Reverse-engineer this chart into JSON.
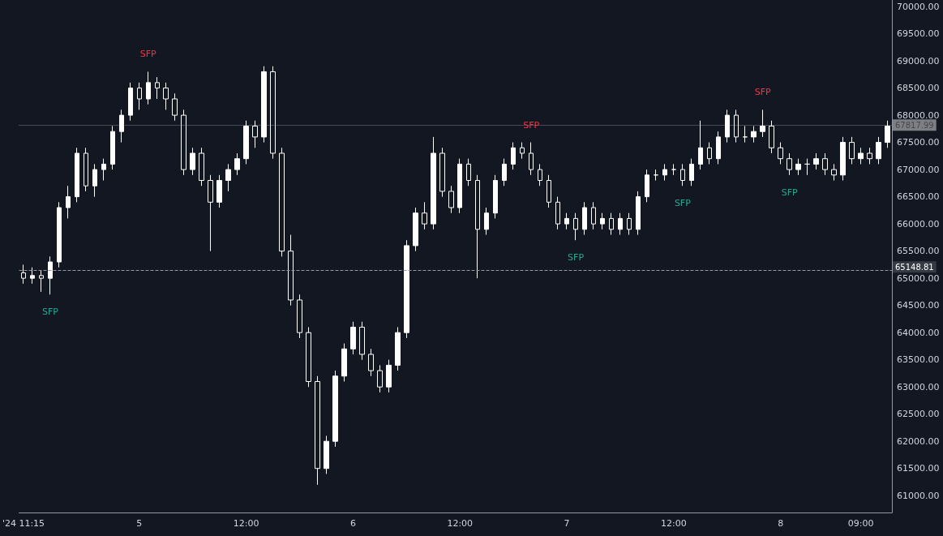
{
  "chart_data": {
    "type": "candlestick",
    "color": "#ffffff",
    "categories": [
      "'24 11:15",
      null,
      null,
      null,
      null,
      null,
      null,
      null,
      null,
      null,
      null,
      null,
      null,
      "5",
      null,
      null,
      null,
      null,
      null,
      null,
      null,
      null,
      null,
      null,
      null,
      "12:00",
      null,
      null,
      null,
      null,
      null,
      null,
      null,
      null,
      null,
      null,
      null,
      "6",
      null,
      null,
      null,
      null,
      null,
      null,
      null,
      null,
      null,
      null,
      null,
      "12:00",
      null,
      null,
      null,
      null,
      null,
      null,
      null,
      null,
      null,
      null,
      null,
      "7",
      null,
      null,
      null,
      null,
      null,
      null,
      null,
      null,
      null,
      null,
      null,
      "12:00",
      null,
      null,
      null,
      null,
      null,
      null,
      null,
      null,
      null,
      null,
      null,
      "8",
      null,
      null,
      null,
      null,
      null,
      null,
      null,
      null,
      "09:00",
      null,
      null,
      null
    ],
    "ohlc": [
      [
        65100,
        65250,
        64900,
        65000
      ],
      [
        65000,
        65200,
        64900,
        65050
      ],
      [
        65050,
        65150,
        64750,
        65000
      ],
      [
        65000,
        65400,
        64700,
        65300
      ],
      [
        65300,
        66400,
        65200,
        66300
      ],
      [
        66300,
        66700,
        66100,
        66500
      ],
      [
        66500,
        67400,
        66400,
        67300
      ],
      [
        67300,
        67400,
        66600,
        66700
      ],
      [
        66700,
        67100,
        66500,
        67000
      ],
      [
        67000,
        67200,
        66800,
        67100
      ],
      [
        67100,
        67800,
        67000,
        67700
      ],
      [
        67700,
        68100,
        67500,
        68000
      ],
      [
        68000,
        68600,
        67900,
        68500
      ],
      [
        68500,
        68600,
        68100,
        68300
      ],
      [
        68300,
        68800,
        68200,
        68600
      ],
      [
        68600,
        68700,
        68300,
        68500
      ],
      [
        68500,
        68600,
        68100,
        68300
      ],
      [
        68300,
        68400,
        67900,
        68000
      ],
      [
        68000,
        68100,
        66900,
        67000
      ],
      [
        67000,
        67400,
        66900,
        67300
      ],
      [
        67300,
        67400,
        66700,
        66800
      ],
      [
        66800,
        66900,
        65500,
        66400
      ],
      [
        66400,
        66900,
        66300,
        66800
      ],
      [
        66800,
        67100,
        66600,
        67000
      ],
      [
        67000,
        67300,
        66900,
        67200
      ],
      [
        67200,
        67900,
        67100,
        67800
      ],
      [
        67800,
        67900,
        67400,
        67600
      ],
      [
        67600,
        68900,
        67500,
        68800
      ],
      [
        68800,
        68900,
        67200,
        67300
      ],
      [
        67300,
        67400,
        65400,
        65500
      ],
      [
        65500,
        65800,
        64500,
        64600
      ],
      [
        64600,
        64700,
        63900,
        64000
      ],
      [
        64000,
        64100,
        63000,
        63100
      ],
      [
        63100,
        63200,
        61200,
        61500
      ],
      [
        61500,
        62100,
        61400,
        62000
      ],
      [
        62000,
        63300,
        61900,
        63200
      ],
      [
        63200,
        63800,
        63100,
        63700
      ],
      [
        63700,
        64200,
        63600,
        64100
      ],
      [
        64100,
        64200,
        63500,
        63600
      ],
      [
        63600,
        63700,
        63200,
        63300
      ],
      [
        63300,
        63400,
        62900,
        63000
      ],
      [
        63000,
        63500,
        62900,
        63400
      ],
      [
        63400,
        64100,
        63300,
        64000
      ],
      [
        64000,
        65700,
        63900,
        65600
      ],
      [
        65600,
        66300,
        65500,
        66200
      ],
      [
        66200,
        66400,
        65900,
        66000
      ],
      [
        66000,
        67600,
        65900,
        67300
      ],
      [
        67300,
        67400,
        66500,
        66600
      ],
      [
        66600,
        66700,
        66200,
        66300
      ],
      [
        66300,
        67200,
        66200,
        67100
      ],
      [
        67100,
        67200,
        66700,
        66800
      ],
      [
        66800,
        66900,
        65000,
        65900
      ],
      [
        65900,
        66300,
        65800,
        66200
      ],
      [
        66200,
        66900,
        66100,
        66800
      ],
      [
        66800,
        67200,
        66700,
        67100
      ],
      [
        67100,
        67500,
        67000,
        67400
      ],
      [
        67400,
        67500,
        67200,
        67300
      ],
      [
        67300,
        67500,
        66900,
        67000
      ],
      [
        67000,
        67100,
        66700,
        66800
      ],
      [
        66800,
        66900,
        66300,
        66400
      ],
      [
        66400,
        66500,
        65900,
        66000
      ],
      [
        66000,
        66200,
        65900,
        66100
      ],
      [
        66100,
        66200,
        65700,
        65900
      ],
      [
        65900,
        66400,
        65800,
        66300
      ],
      [
        66300,
        66400,
        65900,
        66000
      ],
      [
        66000,
        66200,
        65900,
        66100
      ],
      [
        66100,
        66200,
        65800,
        65900
      ],
      [
        65900,
        66200,
        65800,
        66100
      ],
      [
        66100,
        66200,
        65800,
        65900
      ],
      [
        65900,
        66600,
        65800,
        66500
      ],
      [
        66500,
        67000,
        66400,
        66900
      ],
      [
        66900,
        67000,
        66800,
        66900
      ],
      [
        66900,
        67100,
        66800,
        67000
      ],
      [
        67000,
        67100,
        66900,
        67000
      ],
      [
        67000,
        67100,
        66700,
        66800
      ],
      [
        66800,
        67200,
        66700,
        67100
      ],
      [
        67100,
        67900,
        67000,
        67400
      ],
      [
        67400,
        67500,
        67100,
        67200
      ],
      [
        67200,
        67700,
        67100,
        67600
      ],
      [
        67600,
        68100,
        67500,
        68000
      ],
      [
        68000,
        68100,
        67500,
        67600
      ],
      [
        67600,
        67800,
        67500,
        67600
      ],
      [
        67600,
        67800,
        67500,
        67700
      ],
      [
        67700,
        68100,
        67600,
        67800
      ],
      [
        67800,
        67900,
        67300,
        67400
      ],
      [
        67400,
        67500,
        67100,
        67200
      ],
      [
        67200,
        67300,
        66900,
        67000
      ],
      [
        67000,
        67200,
        66900,
        67100
      ],
      [
        67100,
        67200,
        66900,
        67100
      ],
      [
        67100,
        67300,
        67000,
        67200
      ],
      [
        67200,
        67300,
        66900,
        67000
      ],
      [
        67000,
        67100,
        66800,
        66900
      ],
      [
        66900,
        67600,
        66800,
        67500
      ],
      [
        67500,
        67600,
        67100,
        67200
      ],
      [
        67200,
        67400,
        67100,
        67300
      ],
      [
        67300,
        67400,
        67100,
        67200
      ],
      [
        67200,
        67600,
        67100,
        67500
      ],
      [
        67500,
        67900,
        67400,
        67800
      ]
    ],
    "value_labels": [
      null,
      null,
      null,
      "SFP",
      null,
      null,
      null,
      null,
      null,
      null,
      null,
      null,
      null,
      null,
      "SFP",
      null,
      null,
      null,
      null,
      null,
      null,
      null,
      null,
      null,
      null,
      null,
      null,
      null,
      null,
      null,
      null,
      null,
      null,
      null,
      null,
      null,
      null,
      null,
      null,
      null,
      null,
      null,
      null,
      null,
      null,
      null,
      null,
      null,
      null,
      null,
      null,
      null,
      null,
      null,
      null,
      null,
      null,
      "SFP",
      null,
      null,
      null,
      null,
      "SFP",
      null,
      null,
      null,
      null,
      null,
      null,
      null,
      null,
      null,
      null,
      null,
      "SFP",
      null,
      null,
      null,
      null,
      null,
      null,
      null,
      null,
      "SFP",
      null,
      null,
      "SFP",
      null,
      null,
      null,
      null,
      null,
      null,
      null,
      null,
      null,
      null,
      null
    ],
    "ylim": [
      60690,
      70120
    ],
    "yticks": [
      {
        "value": 61000,
        "label": "61000.00"
      },
      {
        "value": 61500,
        "label": "61500.00"
      },
      {
        "value": 62000,
        "label": "62000.00"
      },
      {
        "value": 62500,
        "label": "62500.00"
      },
      {
        "value": 63000,
        "label": "63000.00"
      },
      {
        "value": 63500,
        "label": "63500.00"
      },
      {
        "value": 64000,
        "label": "64000.00"
      },
      {
        "value": 64500,
        "label": "64500.00"
      },
      {
        "value": 65000,
        "label": "65000.00"
      },
      {
        "value": 65500,
        "label": "65500.00"
      },
      {
        "value": 66000,
        "label": "66000.00"
      },
      {
        "value": 66500,
        "label": "66500.00"
      },
      {
        "value": 67000,
        "label": "67000.00"
      },
      {
        "value": 67500,
        "label": "67500.00"
      },
      {
        "value": 68000,
        "label": "68000.00"
      },
      {
        "value": 68500,
        "label": "68500.00"
      },
      {
        "value": 69000,
        "label": "69000.00"
      },
      {
        "value": 69500,
        "label": "69500.00"
      },
      {
        "value": 70000,
        "label": "70000.00"
      }
    ],
    "ref_lines": [
      {
        "axis": "y",
        "value": 65148.81,
        "label": "65148.81",
        "line_style": "dashed",
        "color": "#9598a1"
      },
      {
        "axis": "y",
        "value": 67817.99,
        "label": "67817.99",
        "line_style": "dotted",
        "color": "#ffffff"
      }
    ]
  }
}
